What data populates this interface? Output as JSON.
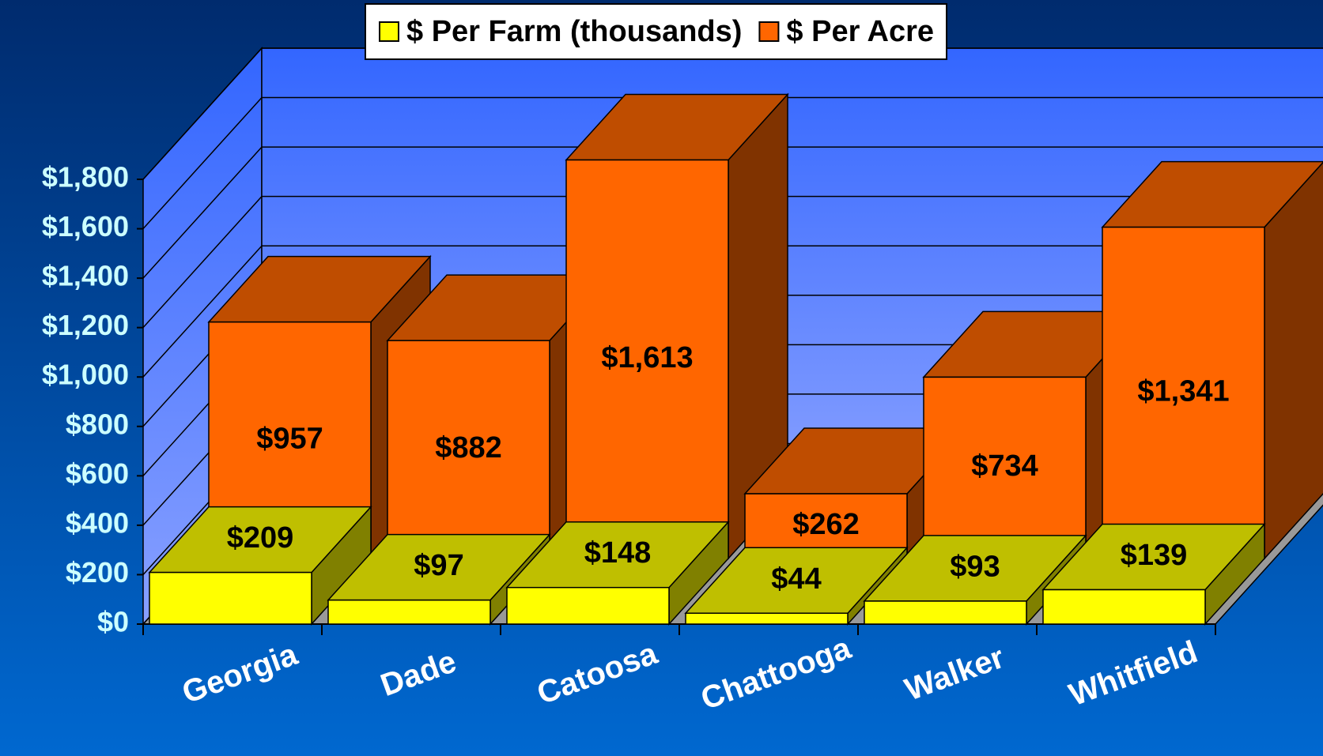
{
  "chart_data": {
    "type": "bar3d",
    "categories": [
      "Georgia",
      "Dade",
      "Catoosa",
      "Chattooga",
      "Walker",
      "Whitfield"
    ],
    "series": [
      {
        "name": "$ Per Farm (thousands)",
        "color": "#ffff00",
        "values": [
          209,
          97,
          148,
          44,
          93,
          139
        ],
        "value_labels": [
          "$209",
          "$97",
          "$148",
          "$44",
          "$93",
          "$139"
        ]
      },
      {
        "name": "$ Per Acre",
        "color": "#ff6600",
        "values": [
          957,
          882,
          1613,
          262,
          734,
          1341
        ],
        "value_labels": [
          "$957",
          "$882",
          "$1,613",
          "$262",
          "$734",
          "$1,341"
        ]
      }
    ],
    "ylim": [
      0,
      1800
    ],
    "yticks": [
      {
        "value": 0,
        "label": "$0"
      },
      {
        "value": 200,
        "label": "$200"
      },
      {
        "value": 400,
        "label": "$400"
      },
      {
        "value": 600,
        "label": "$600"
      },
      {
        "value": 800,
        "label": "$800"
      },
      {
        "value": 1000,
        "label": "$1,000"
      },
      {
        "value": 1200,
        "label": "$1,200"
      },
      {
        "value": 1400,
        "label": "$1,400"
      },
      {
        "value": 1600,
        "label": "$1,600"
      },
      {
        "value": 1800,
        "label": "$1,800"
      }
    ],
    "grid": true,
    "legend": "top"
  }
}
